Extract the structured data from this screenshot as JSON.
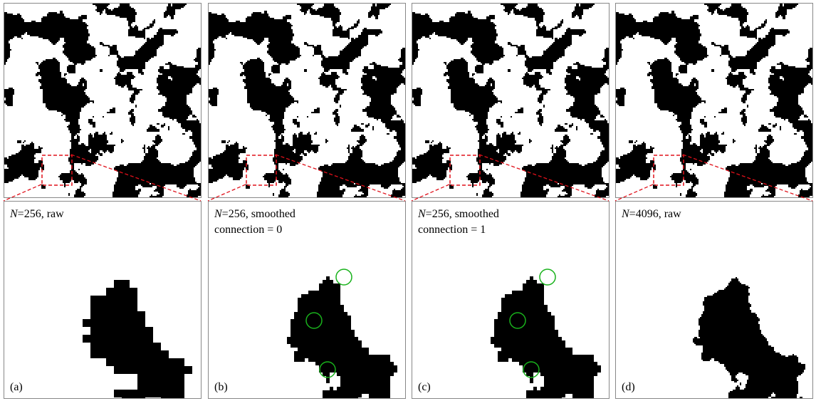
{
  "panels": [
    {
      "letter": "(a)",
      "n_prefix": "N",
      "label_rest": "=256, raw",
      "second_line": "",
      "style": "pixel",
      "circles": false
    },
    {
      "letter": "(b)",
      "n_prefix": "N",
      "label_rest": "=256, smoothed",
      "second_line": "connection = 0",
      "style": "smooth-pixel",
      "circles": true
    },
    {
      "letter": "(c)",
      "n_prefix": "N",
      "label_rest": "=256, smoothed",
      "second_line": "connection = 1",
      "style": "smooth-pixel",
      "circles": true
    },
    {
      "letter": "(d)",
      "n_prefix": "N",
      "label_rest": "=4096, raw",
      "second_line": "",
      "style": "smooth",
      "circles": false
    }
  ],
  "colors": {
    "foreground": "#000000",
    "background": "#ffffff",
    "zoom_box": "#e0101a",
    "circle": "#19b21c",
    "frame": "#888888"
  }
}
